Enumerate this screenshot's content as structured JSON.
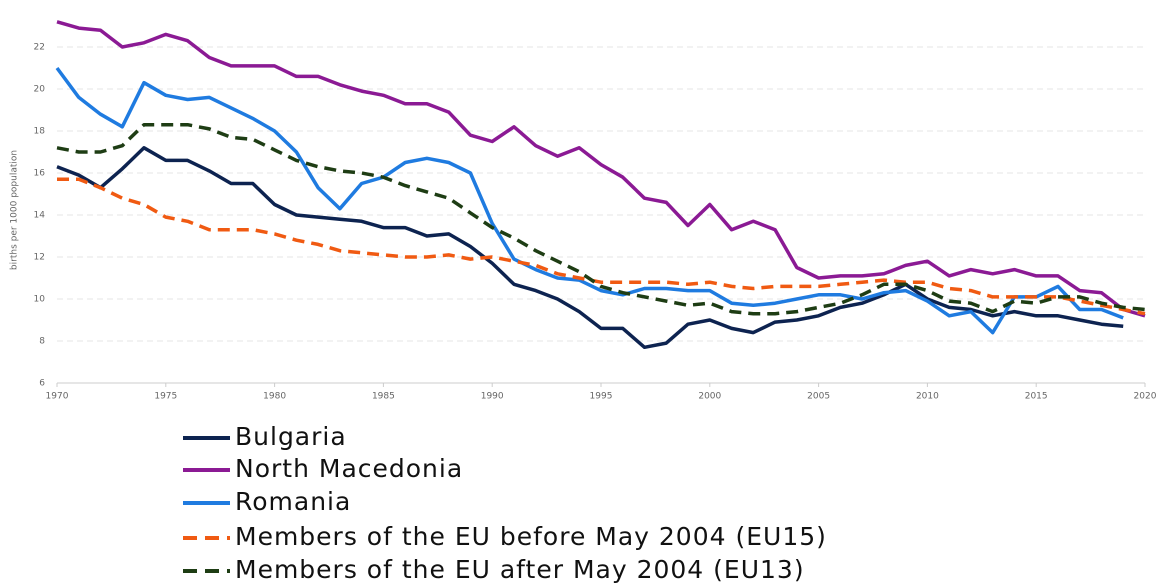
{
  "chart_data": {
    "type": "line",
    "y_label": "births per 1000 population",
    "x": [
      1970,
      1971,
      1972,
      1973,
      1974,
      1975,
      1976,
      1977,
      1978,
      1979,
      1980,
      1981,
      1982,
      1983,
      1984,
      1985,
      1986,
      1987,
      1988,
      1989,
      1990,
      1991,
      1992,
      1993,
      1994,
      1995,
      1996,
      1997,
      1998,
      1999,
      2000,
      2001,
      2002,
      2003,
      2004,
      2005,
      2006,
      2007,
      2008,
      2009,
      2010,
      2011,
      2012,
      2013,
      2014,
      2015,
      2016,
      2017,
      2018,
      2019,
      2020
    ],
    "xlim": [
      1970,
      2020
    ],
    "xticks": [
      1970,
      1975,
      1980,
      1985,
      1990,
      1995,
      2000,
      2005,
      2010,
      2015,
      2020
    ],
    "ylim": [
      6,
      24
    ],
    "yticks": [
      6,
      8,
      10,
      12,
      14,
      16,
      18,
      20,
      22
    ],
    "grid": true,
    "series": [
      {
        "name": "Bulgaria",
        "color": "#0d2350",
        "dashed": false,
        "values": [
          16.3,
          15.9,
          15.3,
          16.2,
          17.2,
          16.6,
          16.6,
          16.1,
          15.5,
          15.5,
          14.5,
          14.0,
          13.9,
          13.8,
          13.7,
          13.4,
          13.4,
          13.0,
          13.1,
          12.5,
          11.7,
          10.7,
          10.4,
          10.0,
          9.4,
          8.6,
          8.6,
          7.7,
          7.9,
          8.8,
          9.0,
          8.6,
          8.4,
          8.9,
          9.0,
          9.2,
          9.6,
          9.8,
          10.2,
          10.7,
          10.0,
          9.6,
          9.5,
          9.2,
          9.4,
          9.2,
          9.2,
          9.0,
          8.8,
          8.7,
          null
        ]
      },
      {
        "name": "North Macedonia",
        "color": "#8b1a94",
        "dashed": false,
        "values": [
          23.2,
          22.9,
          22.8,
          22.0,
          22.2,
          22.6,
          22.3,
          21.5,
          21.1,
          21.1,
          21.1,
          20.6,
          20.6,
          20.2,
          19.9,
          19.7,
          19.3,
          19.3,
          18.9,
          17.8,
          17.5,
          18.2,
          17.3,
          16.8,
          17.2,
          16.4,
          15.8,
          14.8,
          14.6,
          13.5,
          14.5,
          13.3,
          13.7,
          13.3,
          11.5,
          11.0,
          11.1,
          11.1,
          11.2,
          11.6,
          11.8,
          11.1,
          11.4,
          11.2,
          11.4,
          11.1,
          11.1,
          10.4,
          10.3,
          9.5,
          9.2
        ]
      },
      {
        "name": "Romania",
        "color": "#1f7be0",
        "dashed": false,
        "values": [
          21.0,
          19.6,
          18.8,
          18.2,
          20.3,
          19.7,
          19.5,
          19.6,
          19.1,
          18.6,
          18.0,
          17.0,
          15.3,
          14.3,
          15.5,
          15.8,
          16.5,
          16.7,
          16.5,
          16.0,
          13.6,
          11.9,
          11.4,
          11.0,
          10.9,
          10.4,
          10.2,
          10.5,
          10.5,
          10.4,
          10.4,
          9.8,
          9.7,
          9.8,
          10.0,
          10.2,
          10.2,
          10.0,
          10.3,
          10.4,
          9.9,
          9.2,
          9.4,
          8.4,
          10.1,
          10.1,
          10.6,
          9.5,
          9.5,
          9.1,
          null
        ]
      },
      {
        "name": "Members of the EU before May 2004 (EU15)",
        "color": "#f05a12",
        "dashed": true,
        "values": [
          15.7,
          15.7,
          15.3,
          14.8,
          14.5,
          13.9,
          13.7,
          13.3,
          13.3,
          13.3,
          13.1,
          12.8,
          12.6,
          12.3,
          12.2,
          12.1,
          12.0,
          12.0,
          12.1,
          11.9,
          12.0,
          11.8,
          11.6,
          11.2,
          11.0,
          10.8,
          10.8,
          10.8,
          10.8,
          10.7,
          10.8,
          10.6,
          10.5,
          10.6,
          10.6,
          10.6,
          10.7,
          10.8,
          10.9,
          10.8,
          10.8,
          10.5,
          10.4,
          10.1,
          10.1,
          10.1,
          10.1,
          9.9,
          9.7,
          9.5,
          9.3
        ]
      },
      {
        "name": "Members of the EU after May 2004 (EU13)",
        "color": "#1e3d14",
        "dashed": true,
        "values": [
          17.2,
          17.0,
          17.0,
          17.3,
          18.3,
          18.3,
          18.3,
          18.1,
          17.7,
          17.6,
          17.1,
          16.6,
          16.3,
          16.1,
          16.0,
          15.8,
          15.4,
          15.1,
          14.8,
          14.1,
          13.4,
          12.9,
          12.3,
          11.8,
          11.3,
          10.6,
          10.3,
          10.1,
          9.9,
          9.7,
          9.8,
          9.4,
          9.3,
          9.3,
          9.4,
          9.6,
          9.8,
          10.2,
          10.7,
          10.7,
          10.4,
          9.9,
          9.8,
          9.4,
          9.9,
          9.8,
          10.1,
          10.1,
          9.8,
          9.6,
          9.5
        ]
      }
    ]
  }
}
